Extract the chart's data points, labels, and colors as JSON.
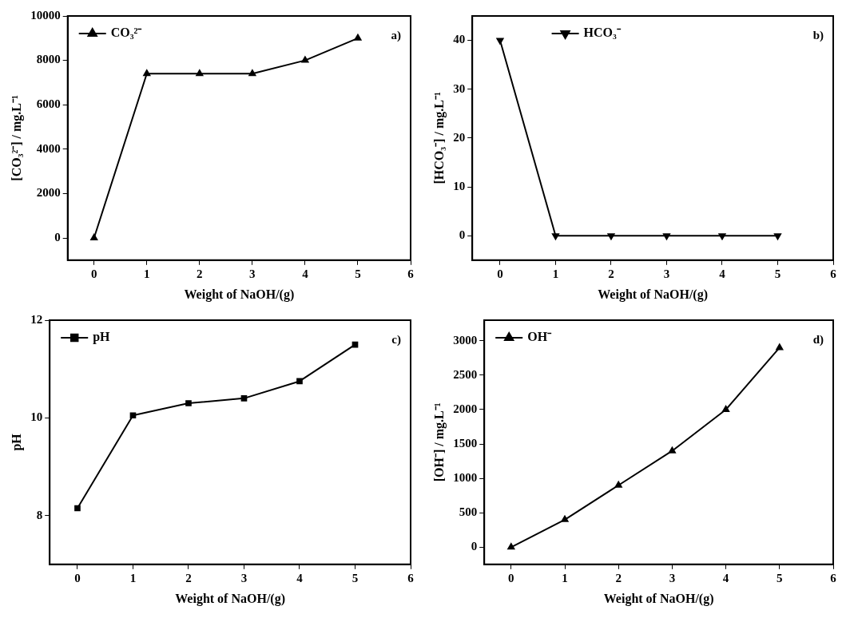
{
  "chart_data": [
    {
      "type": "line",
      "xlabel": "Weight of NaOH/(g)",
      "ylabel": "[CO₃²⁻] / mg.L⁻¹",
      "x": [
        0,
        1,
        2,
        3,
        4,
        5
      ],
      "xlim": [
        -0.5,
        6
      ],
      "xticks": [
        0,
        1,
        2,
        3,
        4,
        5,
        6
      ],
      "ylim": [
        -1000,
        10000
      ],
      "yticks": [
        0,
        2000,
        4000,
        6000,
        8000,
        10000
      ],
      "marker": "triangle",
      "legend": "top left",
      "grid": false,
      "annotations": [
        "a)"
      ],
      "series": [
        {
          "name": "CO₃²⁻",
          "color": "#000000",
          "values": [
            0,
            7400,
            7400,
            7400,
            8000,
            9000
          ]
        }
      ]
    },
    {
      "type": "line",
      "xlabel": "Weight of NaOH/(g)",
      "ylabel": "[HCO₃⁻] / mg.L⁻¹",
      "x": [
        0,
        1,
        2,
        3,
        4,
        5
      ],
      "xlim": [
        -0.5,
        6
      ],
      "xticks": [
        0,
        1,
        2,
        3,
        4,
        5,
        6
      ],
      "ylim": [
        -5,
        45
      ],
      "yticks": [
        0,
        10,
        20,
        30,
        40
      ],
      "marker": "triangle-down",
      "legend": "top",
      "grid": false,
      "annotations": [
        "b)"
      ],
      "series": [
        {
          "name": "HCO₃⁻",
          "color": "#000000",
          "values": [
            40,
            0,
            0,
            0,
            0,
            0
          ]
        }
      ]
    },
    {
      "type": "line",
      "xlabel": "Weight of NaOH/(g)",
      "ylabel": "pH",
      "x": [
        0,
        1,
        2,
        3,
        4,
        5
      ],
      "xlim": [
        -0.5,
        6
      ],
      "xticks": [
        0,
        1,
        2,
        3,
        4,
        5,
        6
      ],
      "ylim": [
        7,
        12
      ],
      "yticks": [
        8,
        10,
        12
      ],
      "marker": "square",
      "legend": "top left",
      "grid": false,
      "annotations": [
        "c)"
      ],
      "series": [
        {
          "name": "pH",
          "color": "#000000",
          "values": [
            8.15,
            10.05,
            10.3,
            10.4,
            10.75,
            11.5
          ]
        }
      ]
    },
    {
      "type": "line",
      "xlabel": "Weight of NaOH/(g)",
      "ylabel": "[OH⁻] / mg.L⁻¹",
      "x": [
        0,
        1,
        2,
        3,
        4,
        5
      ],
      "xlim": [
        -0.5,
        6
      ],
      "xticks": [
        0,
        1,
        2,
        3,
        4,
        5,
        6
      ],
      "ylim": [
        -250,
        3300
      ],
      "yticks": [
        0,
        500,
        1000,
        1500,
        2000,
        2500,
        3000
      ],
      "marker": "triangle",
      "legend": "top left",
      "grid": false,
      "annotations": [
        "d)"
      ],
      "series": [
        {
          "name": "OH⁻",
          "color": "#000000",
          "values": [
            0,
            400,
            900,
            1400,
            2000,
            2900
          ]
        }
      ]
    }
  ]
}
